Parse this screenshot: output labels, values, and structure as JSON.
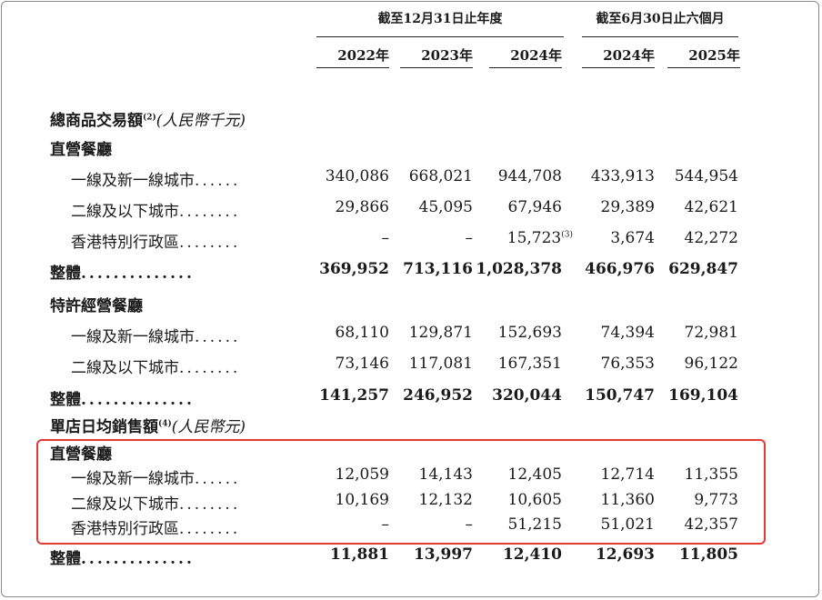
{
  "header": {
    "group_annual": "截至12月31日止年度",
    "group_half": "截至6月30日止六個月",
    "years": [
      "2022年",
      "2023年",
      "2024年",
      "2024年",
      "2025年"
    ]
  },
  "sections": [
    {
      "title": "總商品交易額",
      "note": "(2)",
      "unit": "(人民幣千元)",
      "groups": [
        {
          "name": "直營餐廳",
          "rows": [
            {
              "label": "一線及新一線城市",
              "dots": "......",
              "values": [
                "340,086",
                "668,021",
                "944,708",
                "433,913",
                "544,954"
              ],
              "notes": [
                "",
                "",
                "",
                "",
                ""
              ]
            },
            {
              "label": "二線及以下城市",
              "dots": "........",
              "values": [
                "29,866",
                "45,095",
                "67,946",
                "29,389",
                "42,621"
              ],
              "notes": [
                "",
                "",
                "",
                "",
                ""
              ]
            },
            {
              "label": "香港特別行政區",
              "dots": "........",
              "values": [
                "–",
                "–",
                "15,723",
                "3,674",
                "42,272"
              ],
              "notes": [
                "",
                "",
                "(3)",
                "",
                ""
              ]
            }
          ],
          "total": {
            "label": "整體",
            "dots": "..............",
            "values": [
              "369,952",
              "713,116",
              "1,028,378",
              "466,976",
              "629,847"
            ]
          }
        },
        {
          "name": "特許經營餐廳",
          "rows": [
            {
              "label": "一線及新一線城市",
              "dots": "......",
              "values": [
                "68,110",
                "129,871",
                "152,693",
                "74,394",
                "72,981"
              ],
              "notes": [
                "",
                "",
                "",
                "",
                ""
              ]
            },
            {
              "label": "二線及以下城市",
              "dots": "........",
              "values": [
                "73,146",
                "117,081",
                "167,351",
                "76,353",
                "96,122"
              ],
              "notes": [
                "",
                "",
                "",
                "",
                ""
              ]
            }
          ],
          "total": {
            "label": "整體",
            "dots": "..............",
            "values": [
              "141,257",
              "246,952",
              "320,044",
              "150,747",
              "169,104"
            ]
          }
        }
      ]
    },
    {
      "title": "單店日均銷售額",
      "note": "(4)",
      "unit": "(人民幣元)",
      "groups": [
        {
          "name": "直營餐廳",
          "rows": [
            {
              "label": "一線及新一線城市",
              "dots": "......",
              "values": [
                "12,059",
                "14,143",
                "12,405",
                "12,714",
                "11,355"
              ],
              "notes": [
                "",
                "",
                "",
                "",
                ""
              ]
            },
            {
              "label": "二線及以下城市",
              "dots": "........",
              "values": [
                "10,169",
                "12,132",
                "10,605",
                "11,360",
                "9,773"
              ],
              "notes": [
                "",
                "",
                "",
                "",
                ""
              ]
            },
            {
              "label": "香港特別行政區",
              "dots": "........",
              "values": [
                "–",
                "–",
                "51,215",
                "51,021",
                "42,357"
              ],
              "notes": [
                "",
                "",
                "",
                "",
                ""
              ]
            }
          ],
          "total": {
            "label": "整體",
            "dots": "..............",
            "values": [
              "11,881",
              "13,997",
              "12,410",
              "12,693",
              "11,805"
            ]
          }
        }
      ]
    }
  ],
  "highlight": {
    "color": "#e53935"
  }
}
